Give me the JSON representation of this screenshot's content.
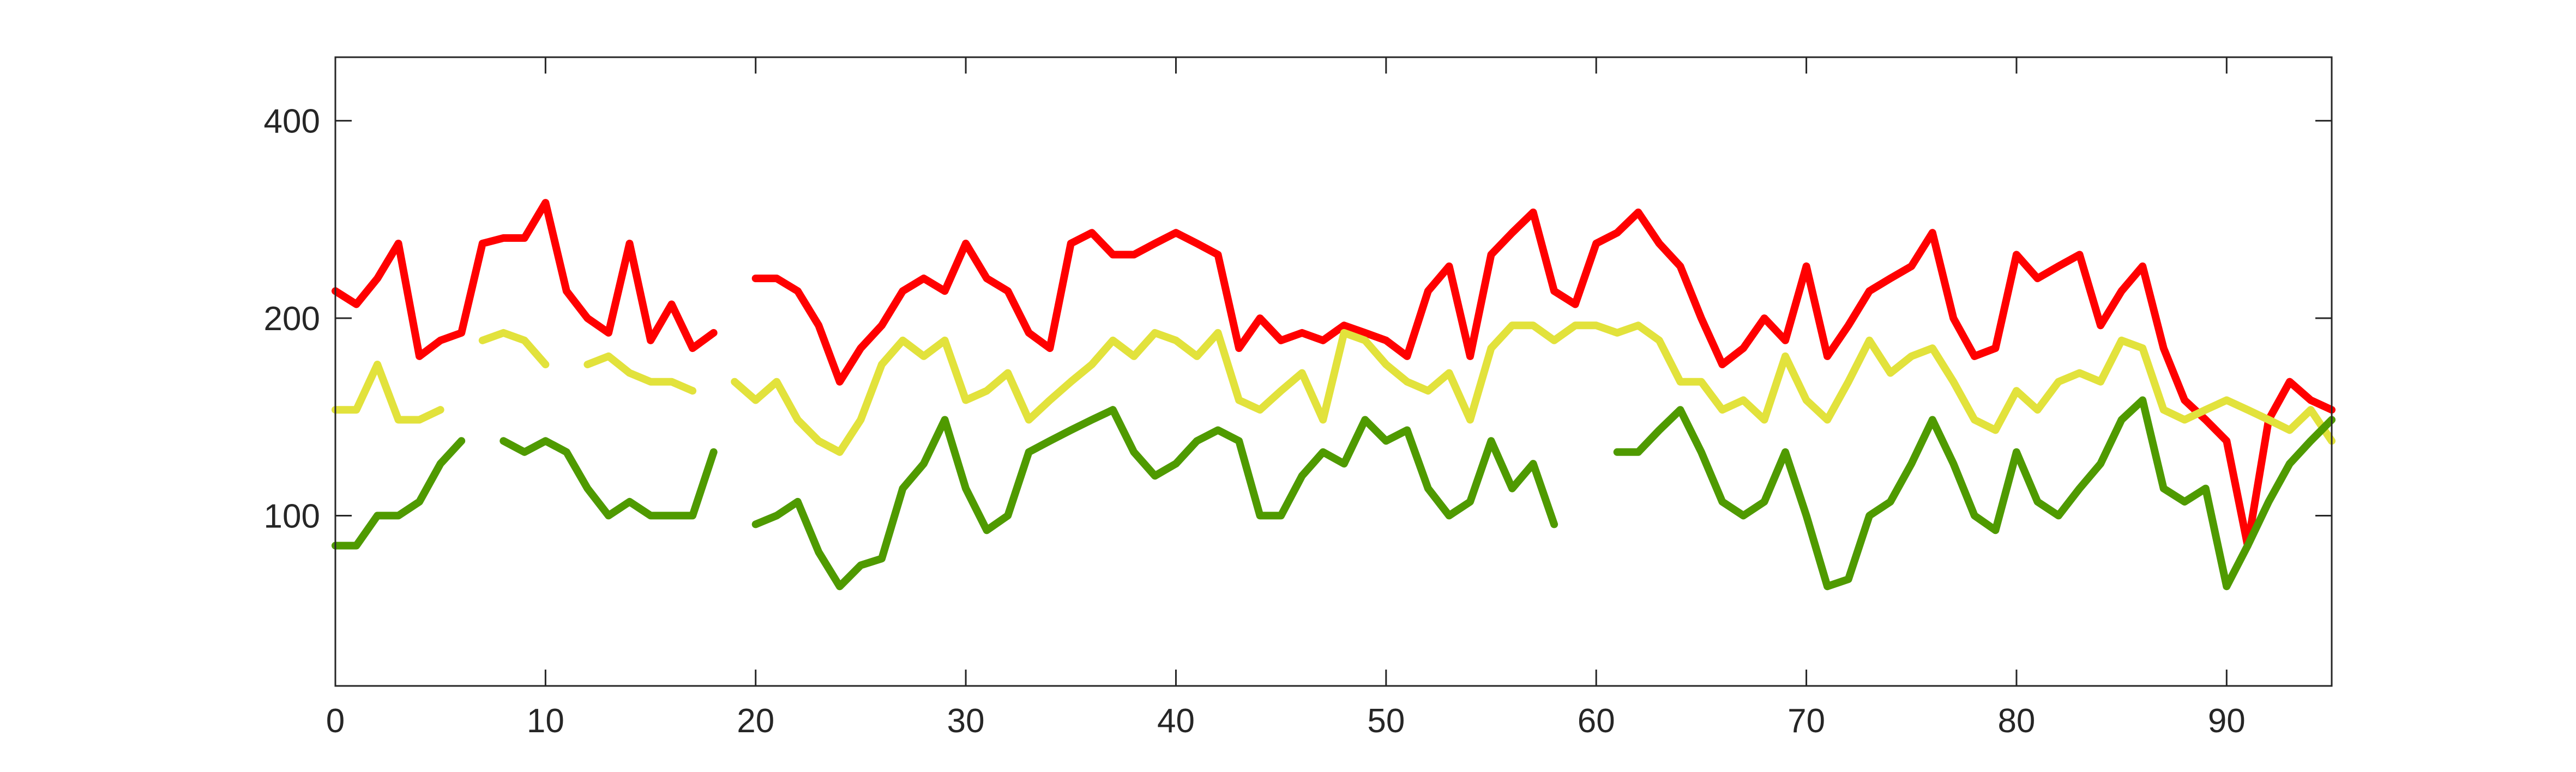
{
  "chart_data": {
    "type": "line",
    "log_y": true,
    "grid": false,
    "x": [
      0,
      1,
      2,
      3,
      4,
      5,
      6,
      7,
      8,
      9,
      10,
      11,
      12,
      13,
      14,
      15,
      16,
      17,
      18,
      19,
      20,
      21,
      22,
      23,
      24,
      25,
      26,
      27,
      28,
      29,
      30,
      31,
      32,
      33,
      34,
      35,
      36,
      37,
      38,
      39,
      40,
      41,
      42,
      43,
      44,
      45,
      46,
      47,
      48,
      49,
      50,
      51,
      52,
      53,
      54,
      55,
      56,
      57,
      58,
      59,
      60,
      61,
      62,
      63,
      64,
      65,
      66,
      67,
      68,
      69,
      70,
      71,
      72,
      73,
      74,
      75,
      76,
      77,
      78,
      79,
      80,
      81,
      82,
      83,
      84,
      85,
      86,
      87,
      88,
      89,
      90,
      91,
      92,
      93,
      94,
      95
    ],
    "series": [
      {
        "color": "#ff0000",
        "values": [
          220,
          210,
          230,
          260,
          175,
          185,
          190,
          260,
          265,
          265,
          300,
          220,
          200,
          190,
          260,
          185,
          210,
          180,
          190,
          null,
          230,
          230,
          220,
          195,
          160,
          180,
          195,
          220,
          230,
          220,
          260,
          230,
          220,
          190,
          180,
          260,
          270,
          250,
          250,
          260,
          270,
          260,
          250,
          180,
          200,
          185,
          190,
          185,
          195,
          190,
          185,
          175,
          220,
          240,
          175,
          250,
          270,
          290,
          220,
          210,
          260,
          270,
          290,
          260,
          240,
          200,
          170,
          180,
          200,
          185,
          240,
          175,
          195,
          220,
          230,
          240,
          270,
          200,
          175,
          180,
          250,
          230,
          240,
          250,
          195,
          220,
          240,
          180,
          150,
          140,
          130,
          90,
          140,
          160,
          150,
          145
        ]
      },
      {
        "color": "#e2e23c",
        "values": [
          145,
          145,
          170,
          140,
          140,
          145,
          null,
          185,
          190,
          185,
          170,
          null,
          170,
          175,
          165,
          160,
          160,
          155,
          null,
          160,
          150,
          160,
          140,
          130,
          125,
          140,
          170,
          185,
          175,
          185,
          150,
          155,
          165,
          140,
          150,
          160,
          170,
          185,
          175,
          190,
          185,
          175,
          190,
          150,
          145,
          155,
          165,
          140,
          190,
          185,
          170,
          160,
          155,
          165,
          140,
          180,
          195,
          195,
          185,
          195,
          195,
          190,
          195,
          185,
          160,
          160,
          145,
          150,
          140,
          175,
          150,
          140,
          160,
          185,
          165,
          175,
          180,
          160,
          140,
          135,
          155,
          145,
          160,
          165,
          160,
          185,
          180,
          145,
          140,
          145,
          150,
          145,
          140,
          135,
          145,
          130
        ]
      },
      {
        "color": "#4f9a00",
        "values": [
          90,
          90,
          100,
          100,
          105,
          120,
          130,
          null,
          130,
          125,
          130,
          125,
          110,
          100,
          105,
          100,
          100,
          100,
          125,
          null,
          97,
          100,
          105,
          88,
          78,
          84,
          86,
          110,
          120,
          140,
          110,
          95,
          100,
          125,
          130,
          135,
          140,
          145,
          125,
          115,
          120,
          130,
          135,
          130,
          100,
          100,
          115,
          125,
          120,
          140,
          130,
          135,
          110,
          100,
          105,
          130,
          110,
          120,
          97,
          null,
          null,
          125,
          125,
          135,
          145,
          125,
          105,
          100,
          105,
          125,
          100,
          78,
          80,
          100,
          105,
          120,
          140,
          120,
          100,
          95,
          125,
          105,
          100,
          110,
          120,
          140,
          150,
          110,
          105,
          110,
          78,
          90,
          105,
          120,
          130,
          140
        ]
      }
    ],
    "xlim": [
      0,
      95
    ],
    "xticks": [
      0,
      10,
      20,
      30,
      40,
      50,
      60,
      70,
      80,
      90
    ],
    "ylim": [
      55,
      500
    ],
    "yticks": [
      100,
      200,
      400
    ]
  }
}
